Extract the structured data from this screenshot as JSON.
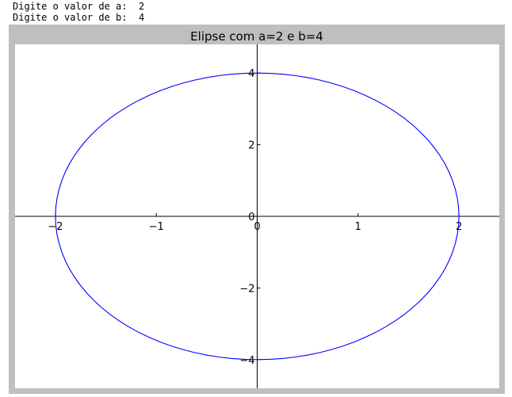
{
  "console": {
    "lines": [
      {
        "prompt": "Digite o valor de a:",
        "value": "2"
      },
      {
        "prompt": "Digite o valor de b:",
        "value": "4"
      }
    ]
  },
  "chart_data": {
    "type": "line",
    "title": "Elipse com a=2 e b=4",
    "xlabel": "",
    "ylabel": "",
    "xlim": [
      -2.4,
      2.4
    ],
    "ylim": [
      -4.8,
      4.8
    ],
    "grid": false,
    "axes_style": "spines through origin",
    "x_ticks": [
      -2,
      -1,
      0,
      1,
      2
    ],
    "x_tick_labels": [
      "−2",
      "−1",
      "0",
      "1",
      "2"
    ],
    "y_ticks": [
      -4,
      -2,
      0,
      2,
      4
    ],
    "y_tick_labels": [
      "−4",
      "−2",
      "0",
      "2",
      "4"
    ],
    "series": [
      {
        "equation": "x = a cos t, y = b sin t",
        "a": 2,
        "b": 4,
        "color": "#0000ff"
      }
    ],
    "colors": {
      "figure_background": "#bfbfbf",
      "plot_background": "#ffffff",
      "axis": "#000000"
    }
  }
}
